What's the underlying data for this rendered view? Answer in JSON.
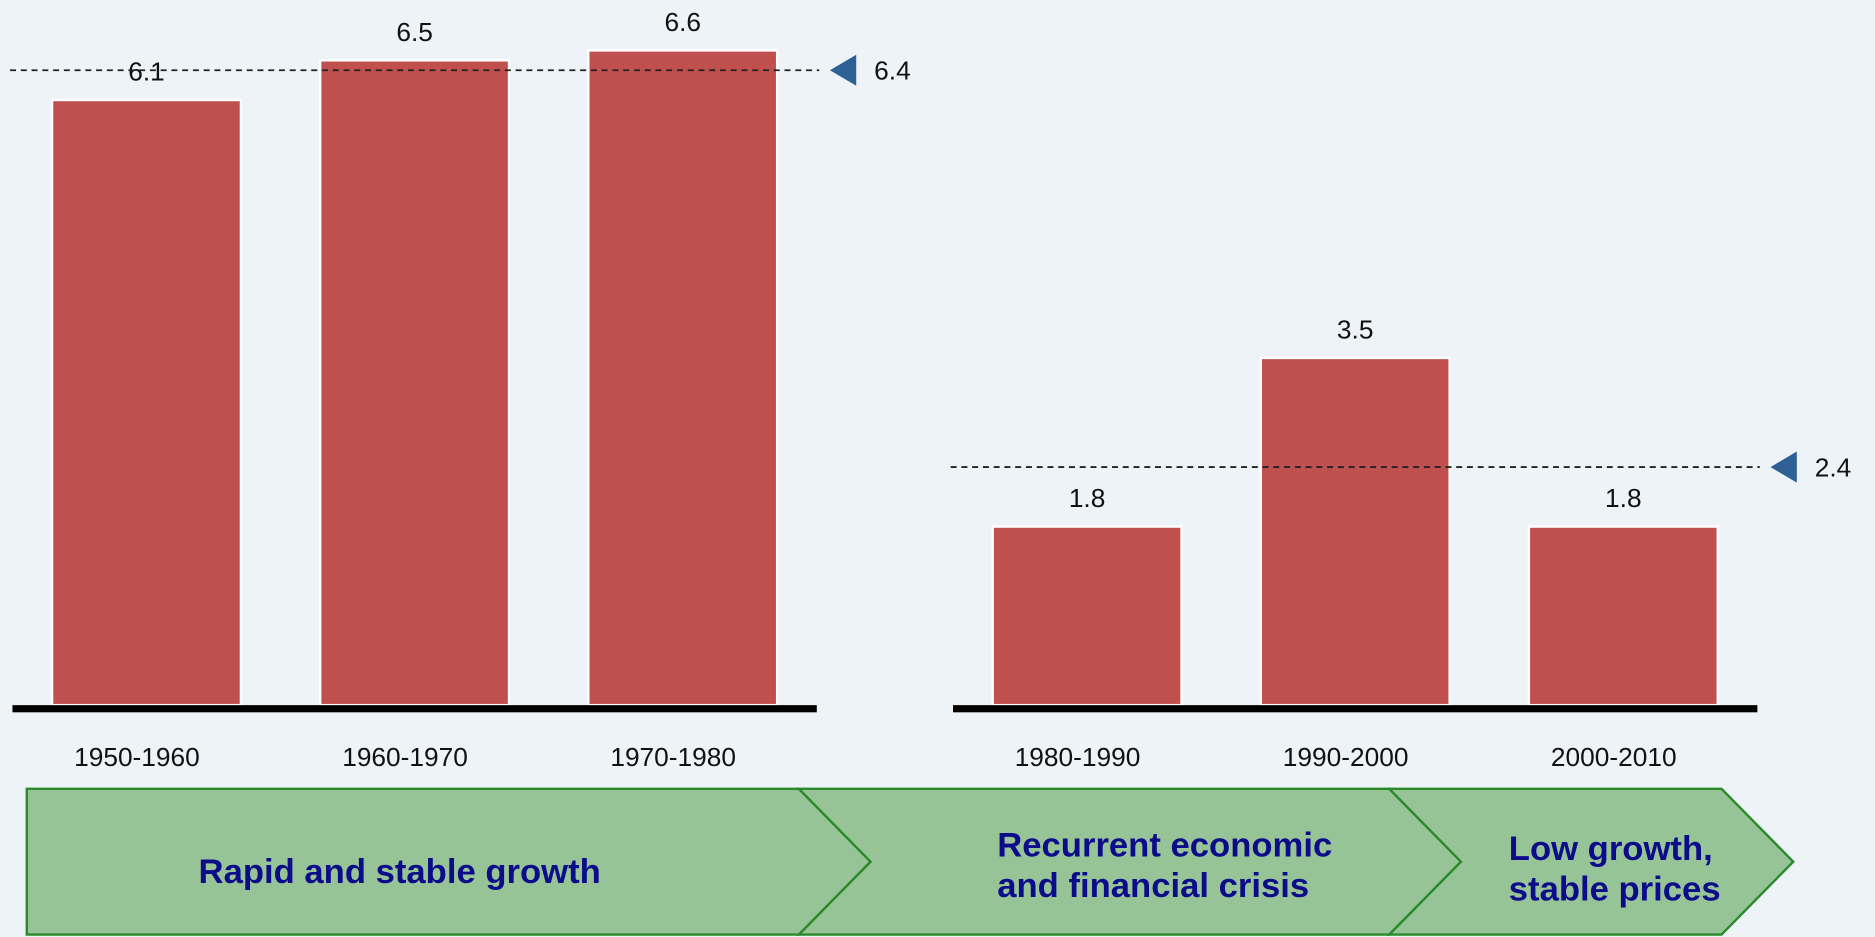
{
  "chart_data": [
    {
      "type": "bar",
      "categories": [
        "1950-1960",
        "1960-1970",
        "1970-1980"
      ],
      "values": [
        6.1,
        6.5,
        6.6
      ],
      "mean_line": 6.4,
      "color": "#c0504d",
      "ylim": [
        0,
        7
      ]
    },
    {
      "type": "bar",
      "categories": [
        "1980-1990",
        "1990-2000",
        "2000-2010"
      ],
      "values": [
        1.8,
        3.5,
        1.8
      ],
      "mean_line": 2.4,
      "color": "#c0504d",
      "ylim": [
        0,
        7
      ]
    }
  ],
  "phases": [
    {
      "lines": [
        "Rapid and stable growth"
      ]
    },
    {
      "lines": [
        "Recurrent economic",
        "and financial crisis"
      ]
    },
    {
      "lines": [
        "Low growth,",
        "stable prices"
      ]
    }
  ]
}
